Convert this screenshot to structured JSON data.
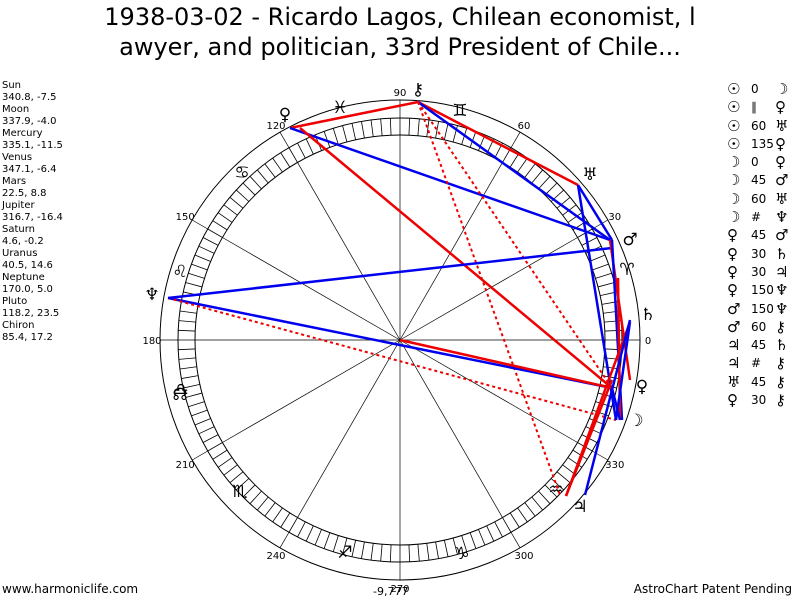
{
  "title_line1": "1938-03-02 - Ricardo Lagos, Chilean economist, l",
  "title_line2": "awyer, and politician, 33rd President of Chile...",
  "planets": [
    {
      "name": "Sun",
      "coords": "340.8, -7.5"
    },
    {
      "name": "Moon",
      "coords": "337.9, -4.0"
    },
    {
      "name": "Mercury",
      "coords": "335.1, -11.5"
    },
    {
      "name": "Venus",
      "coords": "347.1, -6.4"
    },
    {
      "name": "Mars",
      "coords": "22.5, 8.8"
    },
    {
      "name": "Jupiter",
      "coords": "316.7, -16.4"
    },
    {
      "name": "Saturn",
      "coords": "4.6, -0.2"
    },
    {
      "name": "Uranus",
      "coords": "40.5, 14.6"
    },
    {
      "name": "Neptune",
      "coords": "170.0, 5.0"
    },
    {
      "name": "Pluto",
      "coords": "118.2, 23.5"
    },
    {
      "name": "Chiron",
      "coords": "85.4, 17.2"
    }
  ],
  "aspects": [
    {
      "p1": "☉",
      "aspect": "0",
      "p2": "☽"
    },
    {
      "p1": "☉",
      "aspect": "∥",
      "p2": "♀"
    },
    {
      "p1": "☉",
      "aspect": "60",
      "p2": "♅"
    },
    {
      "p1": "☉",
      "aspect": "135",
      "p2": "♀"
    },
    {
      "p1": "☽",
      "aspect": "0",
      "p2": "♀"
    },
    {
      "p1": "☽",
      "aspect": "45",
      "p2": "♂"
    },
    {
      "p1": "☽",
      "aspect": "60",
      "p2": "♅"
    },
    {
      "p1": "☽",
      "aspect": "#",
      "p2": "♆"
    },
    {
      "p1": "♀",
      "aspect": "45",
      "p2": "♂"
    },
    {
      "p1": "♀",
      "aspect": "30",
      "p2": "♄"
    },
    {
      "p1": "♀",
      "aspect": "30",
      "p2": "♃"
    },
    {
      "p1": "♀",
      "aspect": "150",
      "p2": "♆"
    },
    {
      "p1": "♂",
      "aspect": "150",
      "p2": "♆"
    },
    {
      "p1": "♂",
      "aspect": "60",
      "p2": "⚷"
    },
    {
      "p1": "♃",
      "aspect": "45",
      "p2": "♄"
    },
    {
      "p1": "♃",
      "aspect": "#",
      "p2": "⚷"
    },
    {
      "p1": "♅",
      "aspect": "45",
      "p2": "⚷"
    },
    {
      "p1": "♀",
      "aspect": "30",
      "p2": "⚷"
    }
  ],
  "degree_labels": [
    "0",
    "30",
    "60",
    "90",
    "120",
    "150",
    "180",
    "210",
    "240",
    "270",
    "300",
    "330"
  ],
  "wheel_glyphs": {
    "chiron": "⚷",
    "venus": "♀",
    "uranus": "♅",
    "mars": "♂",
    "saturn": "♄",
    "neptune": "♆",
    "jupiter": "♃",
    "pluto": "♀",
    "moon": "☽",
    "node": "☊"
  },
  "zodiac_glyphs": {
    "aries": "♈",
    "taurus": "♉",
    "gemini": "♊",
    "cancer": "♋",
    "leo": "♌",
    "virgo": "♍",
    "libra": "♎",
    "scorpio": "♏",
    "sagittarius": "♐",
    "capricorn": "♑",
    "aquarius": "♒",
    "pisces": "♓"
  },
  "footer_left": "www.harmoniclife.com",
  "footer_center": "-9,777",
  "footer_right": "AstroChart Patent Pending",
  "colors": {
    "red": "#ee0000",
    "blue": "#0000ee"
  }
}
